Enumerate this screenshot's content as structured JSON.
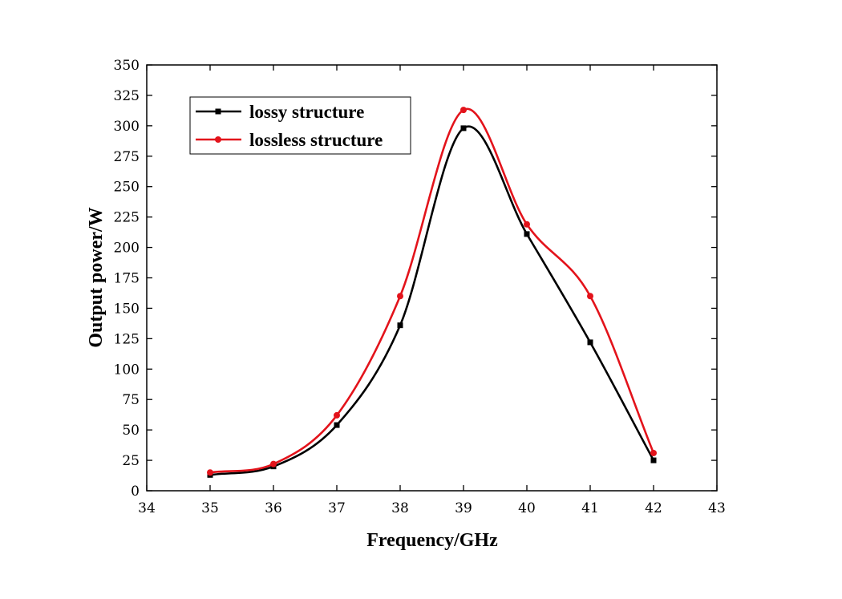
{
  "chart_data": {
    "type": "line",
    "xlabel": "Frequency/GHz",
    "ylabel": "Output power/W",
    "xlim": [
      34,
      43
    ],
    "ylim": [
      0,
      350
    ],
    "x_ticks": [
      34,
      35,
      36,
      37,
      38,
      39,
      40,
      41,
      42,
      43
    ],
    "y_ticks": [
      0,
      25,
      50,
      75,
      100,
      125,
      150,
      175,
      200,
      225,
      250,
      275,
      300,
      325,
      350
    ],
    "grid": false,
    "legend_position": "top-left",
    "x": [
      35,
      36,
      37,
      38,
      39,
      40,
      41,
      42
    ],
    "series": [
      {
        "name": "lossy structure",
        "color": "#000000",
        "marker": "square",
        "values": [
          13,
          20,
          54,
          136,
          298,
          211,
          122,
          25
        ]
      },
      {
        "name": "lossless structure",
        "color": "#e3131b",
        "marker": "circle",
        "values": [
          15,
          22,
          62,
          160,
          313,
          219,
          160,
          31
        ]
      }
    ]
  }
}
